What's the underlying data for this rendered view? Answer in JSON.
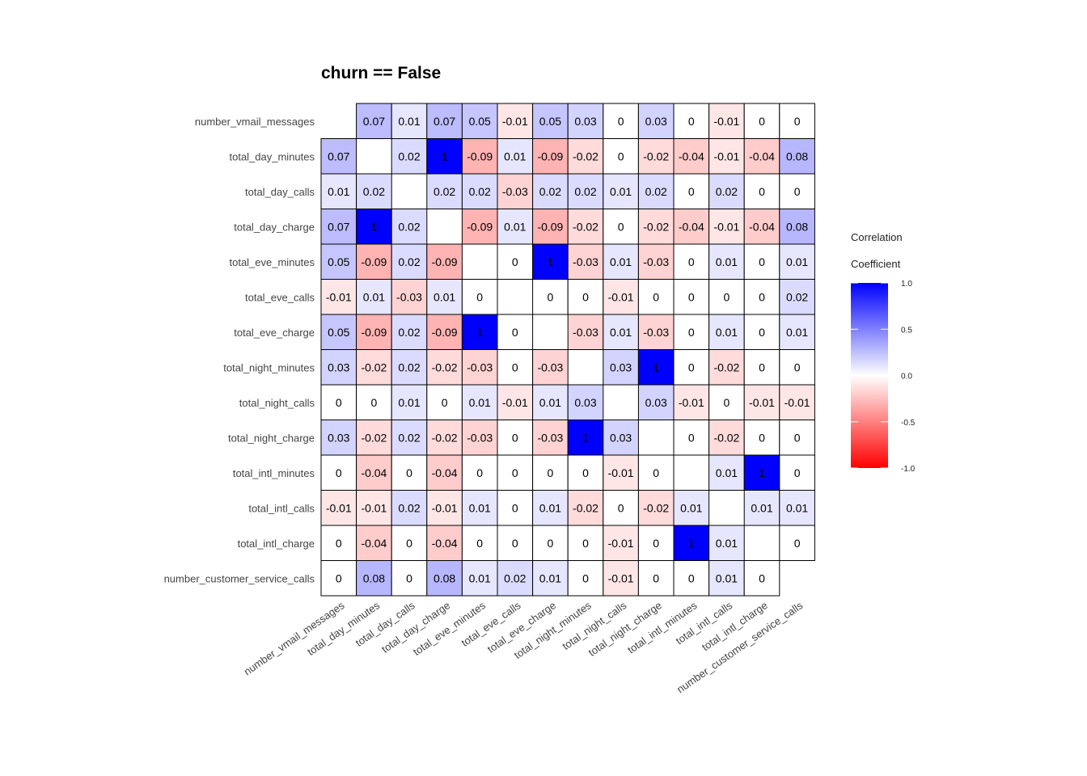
{
  "chart_data": {
    "type": "heatmap",
    "title": "churn == False",
    "variables": [
      "number_vmail_messages",
      "total_day_minutes",
      "total_day_calls",
      "total_day_charge",
      "total_eve_minutes",
      "total_eve_calls",
      "total_eve_charge",
      "total_night_minutes",
      "total_night_calls",
      "total_night_charge",
      "total_intl_minutes",
      "total_intl_calls",
      "total_intl_charge",
      "number_customer_service_calls"
    ],
    "matrix": [
      [
        null,
        0.07,
        0.01,
        0.07,
        0.05,
        -0.01,
        0.05,
        0.03,
        0,
        0.03,
        0,
        -0.01,
        0,
        0
      ],
      [
        0.07,
        null,
        0.02,
        1,
        -0.09,
        0.01,
        -0.09,
        -0.02,
        0,
        -0.02,
        -0.04,
        -0.01,
        -0.04,
        0.08
      ],
      [
        0.01,
        0.02,
        null,
        0.02,
        0.02,
        -0.03,
        0.02,
        0.02,
        0.01,
        0.02,
        0,
        0.02,
        0,
        0
      ],
      [
        0.07,
        1,
        0.02,
        null,
        -0.09,
        0.01,
        -0.09,
        -0.02,
        0,
        -0.02,
        -0.04,
        -0.01,
        -0.04,
        0.08
      ],
      [
        0.05,
        -0.09,
        0.02,
        -0.09,
        null,
        0,
        1,
        -0.03,
        0.01,
        -0.03,
        0,
        0.01,
        0,
        0.01
      ],
      [
        -0.01,
        0.01,
        -0.03,
        0.01,
        0,
        null,
        0,
        0,
        -0.01,
        0,
        0,
        0,
        0,
        0.02
      ],
      [
        0.05,
        -0.09,
        0.02,
        -0.09,
        1,
        0,
        null,
        -0.03,
        0.01,
        -0.03,
        0,
        0.01,
        0,
        0.01
      ],
      [
        0.03,
        -0.02,
        0.02,
        -0.02,
        -0.03,
        0,
        -0.03,
        null,
        0.03,
        1,
        0,
        -0.02,
        0,
        0
      ],
      [
        0,
        0,
        0.01,
        0,
        0.01,
        -0.01,
        0.01,
        0.03,
        null,
        0.03,
        -0.01,
        0,
        -0.01,
        -0.01
      ],
      [
        0.03,
        -0.02,
        0.02,
        -0.02,
        -0.03,
        0,
        -0.03,
        1,
        0.03,
        null,
        0,
        -0.02,
        0,
        0
      ],
      [
        0,
        -0.04,
        0,
        -0.04,
        0,
        0,
        0,
        0,
        -0.01,
        0,
        null,
        0.01,
        1,
        0
      ],
      [
        -0.01,
        -0.01,
        0.02,
        -0.01,
        0.01,
        0,
        0.01,
        -0.02,
        0,
        -0.02,
        0.01,
        null,
        0.01,
        0.01
      ],
      [
        0,
        -0.04,
        0,
        -0.04,
        0,
        0,
        0,
        0,
        -0.01,
        0,
        1,
        0.01,
        null,
        0
      ],
      [
        0,
        0.08,
        0,
        0.08,
        0.01,
        0.02,
        0.01,
        0,
        -0.01,
        0,
        0,
        0.01,
        0,
        null
      ]
    ],
    "legend": {
      "title_line1": "Correlation",
      "title_line2": "Coefficient",
      "ticks": [
        "1.0",
        "0.5",
        "0.0",
        "-0.5",
        "-1.0"
      ],
      "tick_values": [
        1.0,
        0.5,
        0.0,
        -0.5,
        -1.0
      ],
      "range": [
        -1,
        1
      ],
      "placement": "right"
    },
    "colors": {
      "high": "#0000ff",
      "mid": "#ffffff",
      "low": "#ff0000",
      "border": "#000000"
    }
  }
}
